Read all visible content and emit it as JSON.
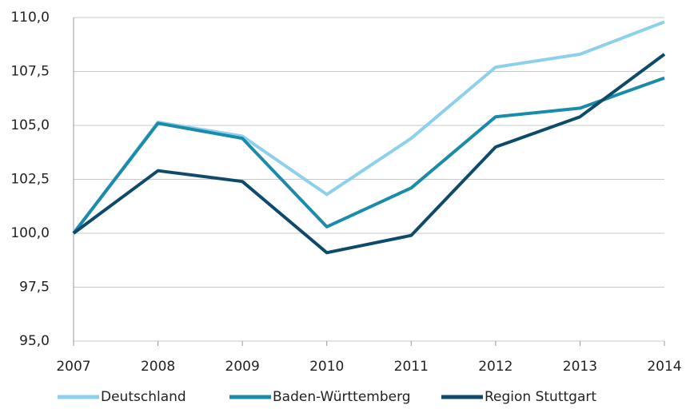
{
  "chart_data": {
    "type": "line",
    "categories": [
      "2007",
      "2008",
      "2009",
      "2010",
      "2011",
      "2012",
      "2013",
      "2014"
    ],
    "series": [
      {
        "name": "Deutschland",
        "color": "#8dd0ee",
        "values": [
          100,
          105.15,
          104.5,
          101.8,
          104.4,
          107.7,
          108.3,
          109.8
        ]
      },
      {
        "name": "Baden-Württemberg",
        "color": "#1a8bab",
        "values": [
          100,
          105.1,
          104.4,
          100.3,
          102.1,
          105.4,
          105.8,
          107.2
        ]
      },
      {
        "name": "Region Stuttgart",
        "color": "#0e4a6c",
        "values": [
          100,
          102.9,
          102.4,
          99.1,
          99.9,
          104.0,
          105.4,
          108.3
        ]
      }
    ],
    "ylim": [
      95,
      110
    ],
    "yticks": [
      {
        "value": 95,
        "label": "95,0"
      },
      {
        "value": 97.5,
        "label": "97,5"
      },
      {
        "value": 100,
        "label": "100,0"
      },
      {
        "value": 102.5,
        "label": "102,5"
      },
      {
        "value": 105,
        "label": "105,0"
      },
      {
        "value": 107.5,
        "label": "107,5"
      },
      {
        "value": 110,
        "label": "110,0"
      }
    ],
    "grid": true,
    "legend": "bottom"
  }
}
